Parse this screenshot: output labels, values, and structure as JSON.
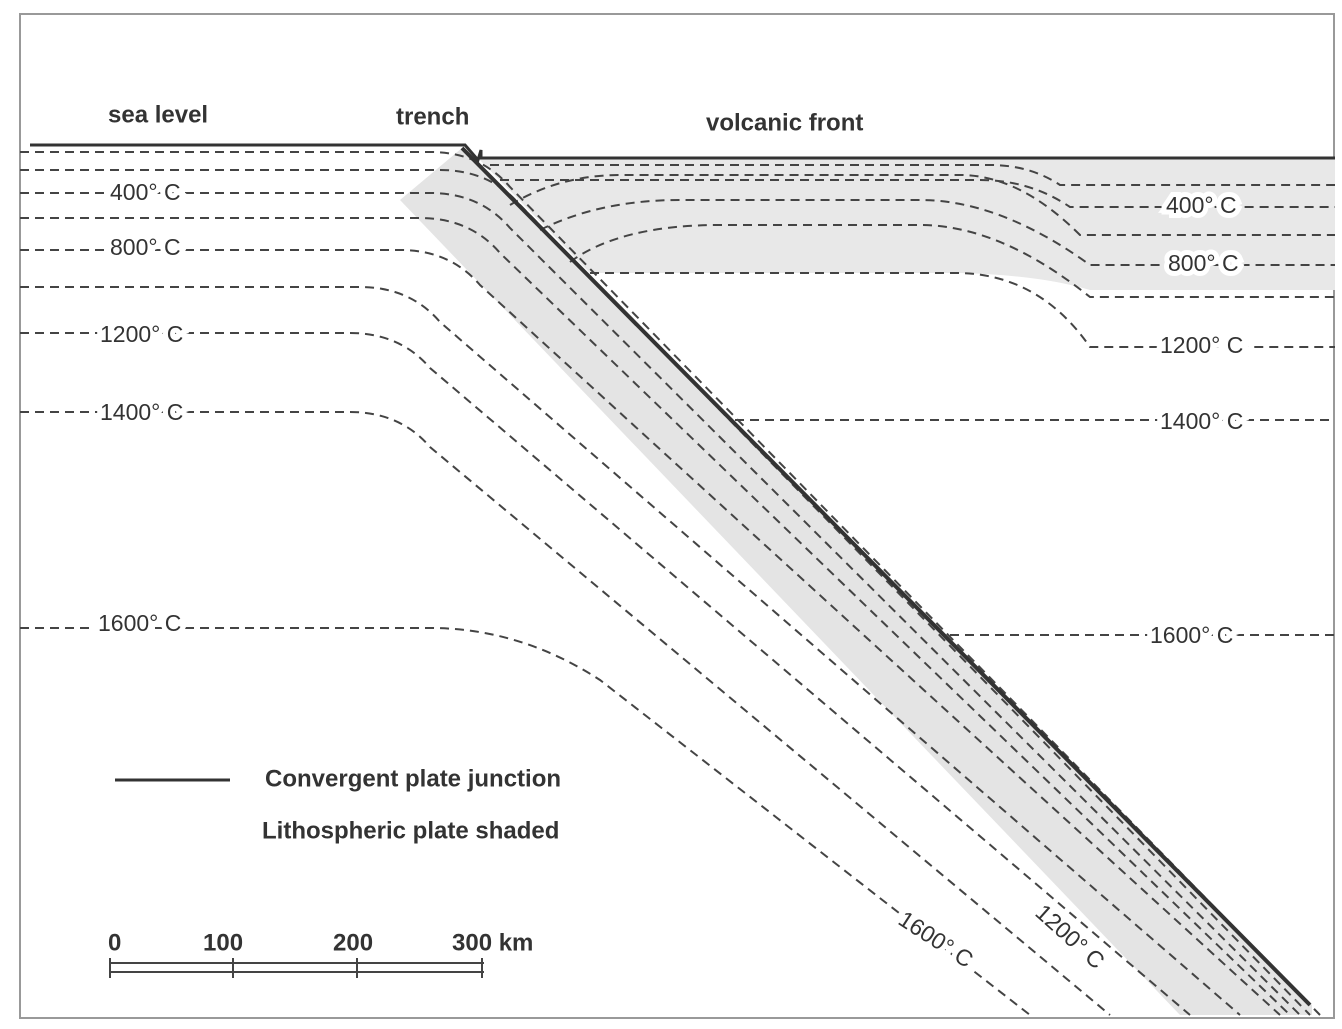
{
  "header": {
    "sea_level": "sea level",
    "trench": "trench",
    "volcanic_front": "volcanic front"
  },
  "isotherms_left": [
    "400° C",
    "800° C",
    "1200° C",
    "1400° C",
    "1600° C"
  ],
  "isotherms_right": [
    "400° C",
    "800° C",
    "1200° C",
    "1400° C",
    "1600° C"
  ],
  "slab_labels": [
    "1600° C",
    "1200° C"
  ],
  "legend": {
    "junction": "Convergent plate junction",
    "shaded": "Lithospheric plate shaded"
  },
  "scale": {
    "ticks": [
      "0",
      "100",
      "200",
      "300 km"
    ]
  }
}
